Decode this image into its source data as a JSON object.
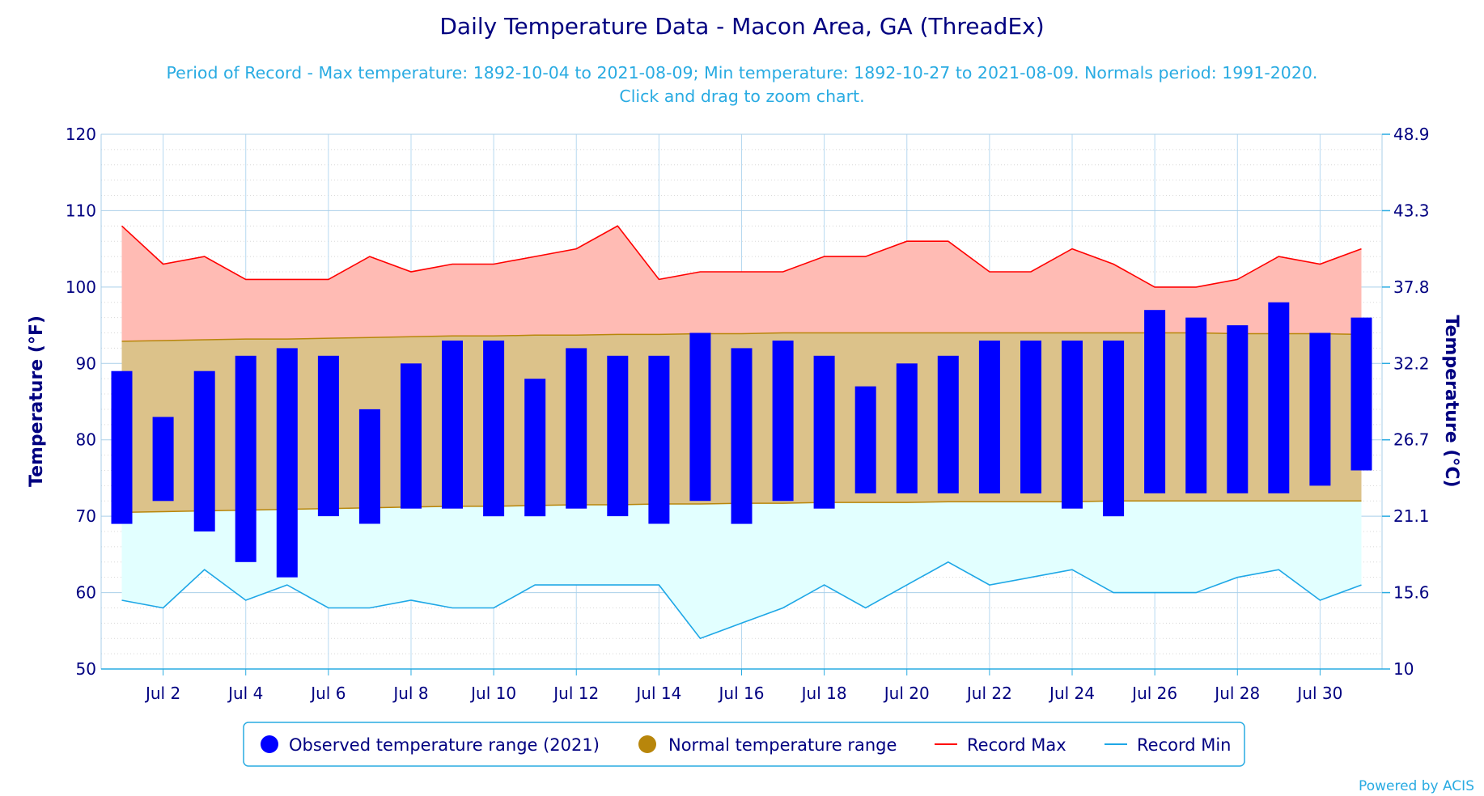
{
  "chart_data": {
    "type": "bar",
    "title": "Daily Temperature Data - Macon Area, GA (ThreadEx)",
    "subtitle_line1": "Period of Record - Max temperature: 1892-10-04 to 2021-08-09; Min temperature: 1892-10-27 to 2021-08-09. Normals period: 1991-2020.",
    "subtitle_line2": "Click and drag to zoom chart.",
    "ylabel_left": "Temperature (°F)",
    "ylabel_right": "Temperature (°C)",
    "ylim": [
      50,
      120
    ],
    "y_ticks": [
      50,
      60,
      70,
      80,
      90,
      100,
      110,
      120
    ],
    "y2_ticks": [
      "10",
      "15.6",
      "21.1",
      "26.7",
      "32.2",
      "37.8",
      "43.3",
      "48.9"
    ],
    "x_range": [
      0.5,
      31.5
    ],
    "x_tick_days": [
      2,
      4,
      6,
      8,
      10,
      12,
      14,
      16,
      18,
      20,
      22,
      24,
      26,
      28,
      30
    ],
    "x_tick_labels": [
      "Jul 2",
      "Jul 4",
      "Jul 6",
      "Jul 8",
      "Jul 10",
      "Jul 12",
      "Jul 14",
      "Jul 16",
      "Jul 18",
      "Jul 20",
      "Jul 22",
      "Jul 24",
      "Jul 26",
      "Jul 28",
      "Jul 30"
    ],
    "grid": true,
    "legend_position": "bottom",
    "days": [
      1,
      2,
      3,
      4,
      5,
      6,
      7,
      8,
      9,
      10,
      11,
      12,
      13,
      14,
      15,
      16,
      17,
      18,
      19,
      20,
      21,
      22,
      23,
      24,
      25,
      26,
      27,
      28,
      29,
      30,
      31
    ],
    "series": [
      {
        "name": "Observed temperature range (2021)",
        "color": "#0000ff",
        "high": [
          89,
          83,
          89,
          91,
          92,
          91,
          84,
          90,
          93,
          93,
          88,
          92,
          91,
          91,
          94,
          92,
          93,
          91,
          87,
          90,
          91,
          93,
          93,
          93,
          93,
          97,
          96,
          95,
          98,
          94,
          96
        ],
        "low": [
          69,
          72,
          68,
          64,
          62,
          70,
          69,
          71,
          71,
          70,
          70,
          71,
          70,
          69,
          72,
          69,
          72,
          71,
          73,
          73,
          73,
          73,
          73,
          71,
          70,
          73,
          73,
          73,
          73,
          74,
          76
        ]
      },
      {
        "name": "Normal temperature range",
        "color": "#b8860b",
        "high": [
          92.9,
          93.0,
          93.1,
          93.2,
          93.2,
          93.3,
          93.4,
          93.5,
          93.6,
          93.6,
          93.7,
          93.7,
          93.8,
          93.8,
          93.9,
          93.9,
          94.0,
          94.0,
          94.0,
          94.0,
          94.0,
          94.0,
          94.0,
          94.0,
          94.0,
          94.0,
          94.0,
          93.9,
          93.9,
          93.9,
          93.8
        ],
        "low": [
          70.5,
          70.6,
          70.7,
          70.8,
          70.9,
          71.0,
          71.1,
          71.2,
          71.3,
          71.3,
          71.4,
          71.5,
          71.5,
          71.6,
          71.6,
          71.7,
          71.7,
          71.8,
          71.8,
          71.8,
          71.9,
          71.9,
          71.9,
          71.9,
          72.0,
          72.0,
          72.0,
          72.0,
          72.0,
          72.0,
          72.0
        ]
      },
      {
        "name": "Record Max",
        "color": "#ff0000",
        "values": [
          108,
          103,
          104,
          101,
          101,
          101,
          104,
          102,
          103,
          103,
          104,
          105,
          108,
          101,
          102,
          102,
          102,
          104,
          104,
          106,
          106,
          102,
          102,
          105,
          103,
          100,
          100,
          101,
          104,
          103,
          105
        ]
      },
      {
        "name": "Record Min",
        "color": "#1ea7e6",
        "values": [
          59,
          58,
          63,
          59,
          61,
          58,
          58,
          59,
          58,
          58,
          61,
          61,
          61,
          61,
          54,
          56,
          58,
          61,
          58,
          61,
          64,
          61,
          62,
          63,
          60,
          60,
          60,
          62,
          63,
          59,
          61
        ]
      }
    ]
  },
  "credit": "Powered by ACIS"
}
